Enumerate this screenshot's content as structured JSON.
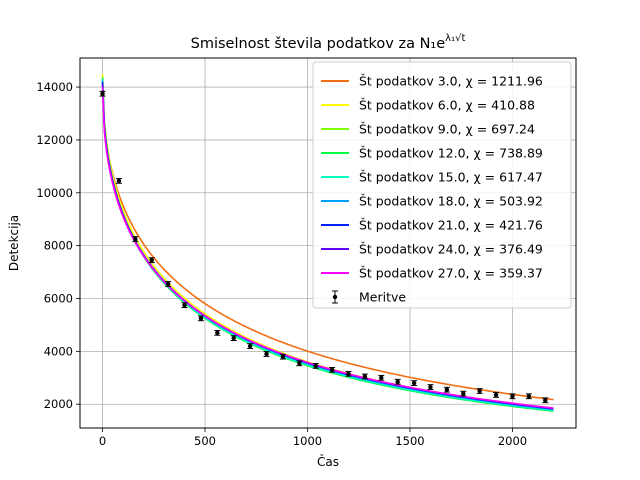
{
  "chart_data": {
    "type": "line",
    "title": "Smiselnost števila podatkov za N₁e^{λ₁√t}",
    "xlabel": "Čas",
    "ylabel": "Detekcija",
    "xlim": [
      -110,
      2310
    ],
    "ylim": [
      1100,
      15100
    ],
    "xticks": [
      0,
      500,
      1000,
      1500,
      2000
    ],
    "yticks": [
      2000,
      4000,
      6000,
      8000,
      10000,
      12000,
      14000
    ],
    "grid": true,
    "legend_position": "top-right",
    "series": [
      {
        "name": "Št podatkov 3.0, χ = 1211.96",
        "color": "#f06e14",
        "N": 14200,
        "lambda": -0.04
      },
      {
        "name": "Št podatkov 6.0, χ = 410.88",
        "color": "#ffff00",
        "N": 14500,
        "lambda": -0.044
      },
      {
        "name": "Št podatkov 9.0, χ = 697.24",
        "color": "#7fff00",
        "N": 14400,
        "lambda": -0.0448
      },
      {
        "name": "Št podatkov 12.0, χ = 738.89",
        "color": "#00ff3f",
        "N": 14350,
        "lambda": -0.045
      },
      {
        "name": "Št podatkov 15.0, χ = 617.47",
        "color": "#00ffbf",
        "N": 14300,
        "lambda": -0.0446
      },
      {
        "name": "Št podatkov 18.0, χ = 503.92",
        "color": "#00a0ff",
        "N": 14250,
        "lambda": -0.0441
      },
      {
        "name": "Št podatkov 21.0, χ = 421.76",
        "color": "#0020ff",
        "N": 14200,
        "lambda": -0.0437
      },
      {
        "name": "Št podatkov 24.0, χ = 376.49",
        "color": "#6000ff",
        "N": 14100,
        "lambda": -0.0434
      },
      {
        "name": "Št podatkov 27.0, χ = 359.37",
        "color": "#ff00ff",
        "N": 14000,
        "lambda": -0.0431
      }
    ],
    "measurements": {
      "name": "Meritve",
      "x": [
        0,
        80,
        160,
        240,
        320,
        400,
        480,
        560,
        640,
        720,
        800,
        880,
        960,
        1040,
        1120,
        1200,
        1280,
        1360,
        1440,
        1520,
        1600,
        1680,
        1760,
        1840,
        1920,
        2000,
        2080,
        2160
      ],
      "y": [
        13750,
        10450,
        8250,
        7450,
        6550,
        5750,
        5250,
        4700,
        4500,
        4200,
        3900,
        3800,
        3550,
        3450,
        3300,
        3150,
        3050,
        3000,
        2850,
        2800,
        2650,
        2550,
        2400,
        2500,
        2350,
        2300,
        2300,
        2150
      ],
      "yerr": 90
    }
  }
}
